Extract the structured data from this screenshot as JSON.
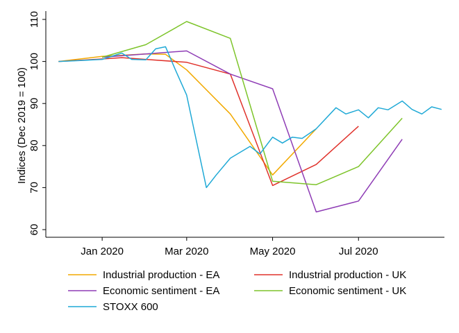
{
  "chart_data": {
    "type": "line",
    "ylabel": "Indices (Dec 2019 = 100)",
    "ylim": [
      60,
      110
    ],
    "yticks": [
      60,
      70,
      80,
      90,
      100,
      110
    ],
    "xlim": [
      "2019-11-22",
      "2020-08-31"
    ],
    "xticks": [
      {
        "date": "2020-01-01",
        "label": "Jan 2020"
      },
      {
        "date": "2020-03-01",
        "label": "Mar 2020"
      },
      {
        "date": "2020-05-01",
        "label": "May 2020"
      },
      {
        "date": "2020-07-01",
        "label": "Jul 2020"
      }
    ],
    "grid": false,
    "legend_position": "bottom",
    "series": [
      {
        "name": "Industrial production - EA",
        "color": "#f2a900",
        "points": [
          [
            "2019-12-01",
            100
          ],
          [
            "2020-01-01",
            101.2
          ],
          [
            "2020-02-01",
            101.8
          ],
          [
            "2020-02-15",
            101.7
          ],
          [
            "2020-03-01",
            98
          ],
          [
            "2020-04-01",
            87.5
          ],
          [
            "2020-05-01",
            73
          ],
          [
            "2020-06-01",
            84
          ]
        ]
      },
      {
        "name": "Industrial production - UK",
        "color": "#e0312a",
        "points": [
          [
            "2019-12-01",
            100
          ],
          [
            "2020-01-01",
            100.6
          ],
          [
            "2020-01-15",
            100.9
          ],
          [
            "2020-02-01",
            100.5
          ],
          [
            "2020-03-01",
            99.8
          ],
          [
            "2020-04-01",
            97
          ],
          [
            "2020-05-01",
            70.5
          ],
          [
            "2020-06-01",
            75.5
          ],
          [
            "2020-07-01",
            84.6
          ]
        ]
      },
      {
        "name": "Economic sentiment - EA",
        "color": "#8e3cb5",
        "points": [
          [
            "2020-01-01",
            101
          ],
          [
            "2020-02-01",
            101.8
          ],
          [
            "2020-03-01",
            102.5
          ],
          [
            "2020-04-01",
            97
          ],
          [
            "2020-05-01",
            93.5
          ],
          [
            "2020-06-01",
            64.2
          ],
          [
            "2020-07-01",
            66.8
          ],
          [
            "2020-08-01",
            81.5
          ]
        ]
      },
      {
        "name": "Economic sentiment - UK",
        "color": "#7dc42a",
        "points": [
          [
            "2020-01-01",
            101
          ],
          [
            "2020-02-01",
            104
          ],
          [
            "2020-03-01",
            109.5
          ],
          [
            "2020-04-01",
            105.5
          ],
          [
            "2020-05-01",
            71.5
          ],
          [
            "2020-06-01",
            70.7
          ],
          [
            "2020-07-01",
            75
          ],
          [
            "2020-08-01",
            86.5
          ]
        ]
      },
      {
        "name": "STOXX 600",
        "color": "#1fa9d6",
        "points": [
          [
            "2019-12-01",
            100
          ],
          [
            "2019-12-15",
            100.2
          ],
          [
            "2020-01-01",
            100.5
          ],
          [
            "2020-01-15",
            102
          ],
          [
            "2020-01-22",
            100.5
          ],
          [
            "2020-02-01",
            100.4
          ],
          [
            "2020-02-08",
            103
          ],
          [
            "2020-02-15",
            103.5
          ],
          [
            "2020-02-22",
            98
          ],
          [
            "2020-03-01",
            92
          ],
          [
            "2020-03-15",
            70
          ],
          [
            "2020-03-22",
            73
          ],
          [
            "2020-04-01",
            77
          ],
          [
            "2020-04-15",
            79.8
          ],
          [
            "2020-04-22",
            78
          ],
          [
            "2020-05-01",
            82
          ],
          [
            "2020-05-08",
            80.6
          ],
          [
            "2020-05-15",
            82
          ],
          [
            "2020-05-22",
            81.7
          ],
          [
            "2020-06-01",
            84
          ],
          [
            "2020-06-15",
            89
          ],
          [
            "2020-06-22",
            87.5
          ],
          [
            "2020-07-01",
            88.5
          ],
          [
            "2020-07-08",
            86.6
          ],
          [
            "2020-07-15",
            89
          ],
          [
            "2020-07-22",
            88.5
          ],
          [
            "2020-08-01",
            90.6
          ],
          [
            "2020-08-08",
            88.6
          ],
          [
            "2020-08-15",
            87.5
          ],
          [
            "2020-08-22",
            89.2
          ],
          [
            "2020-08-29",
            88.6
          ]
        ]
      }
    ]
  }
}
